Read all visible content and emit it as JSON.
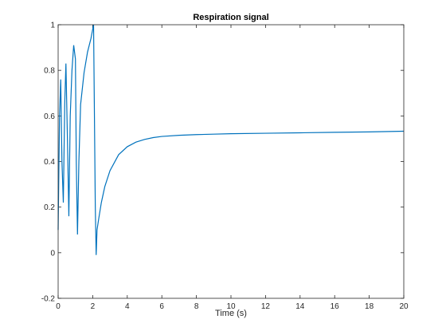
{
  "chart_data": {
    "type": "line",
    "title": "Respiration signal",
    "xlabel": "Time (s)",
    "ylabel": "",
    "xlim": [
      0,
      20
    ],
    "ylim": [
      -0.2,
      1
    ],
    "xticks": [
      0,
      2,
      4,
      6,
      8,
      10,
      12,
      14,
      16,
      18,
      20
    ],
    "yticks": [
      -0.2,
      0,
      0.2,
      0.4,
      0.6,
      0.8,
      1
    ],
    "xtick_labels": [
      "0",
      "2",
      "4",
      "6",
      "8",
      "10",
      "12",
      "14",
      "16",
      "18",
      "20"
    ],
    "ytick_labels": [
      "-0.2",
      "0",
      "0.2",
      "0.4",
      "0.6",
      "0.8",
      "1"
    ],
    "grid": false,
    "line_color": "#0072bd",
    "series": [
      {
        "x": [
          0.0,
          0.08,
          0.15,
          0.22,
          0.3,
          0.38,
          0.45,
          0.55,
          0.62,
          0.7,
          0.8,
          0.9,
          1.0,
          1.05,
          1.12,
          1.2,
          1.3,
          1.5,
          1.7,
          1.9,
          2.05,
          2.1,
          2.15,
          2.2,
          2.25,
          2.35,
          2.5,
          2.7,
          3.0,
          3.5,
          4.0,
          4.5,
          5.0,
          5.5,
          6.0,
          7.0,
          8.0,
          9.0,
          10.0,
          12.0,
          14.0,
          16.0,
          18.0,
          20.0
        ],
        "y": [
          0.1,
          0.6,
          0.76,
          0.4,
          0.22,
          0.65,
          0.83,
          0.45,
          0.16,
          0.6,
          0.8,
          0.91,
          0.85,
          0.4,
          0.08,
          0.4,
          0.65,
          0.79,
          0.88,
          0.94,
          1.0,
          0.6,
          0.2,
          -0.01,
          0.1,
          0.15,
          0.22,
          0.29,
          0.36,
          0.43,
          0.465,
          0.485,
          0.497,
          0.505,
          0.51,
          0.515,
          0.518,
          0.52,
          0.522,
          0.524,
          0.526,
          0.528,
          0.53,
          0.533
        ]
      }
    ]
  }
}
